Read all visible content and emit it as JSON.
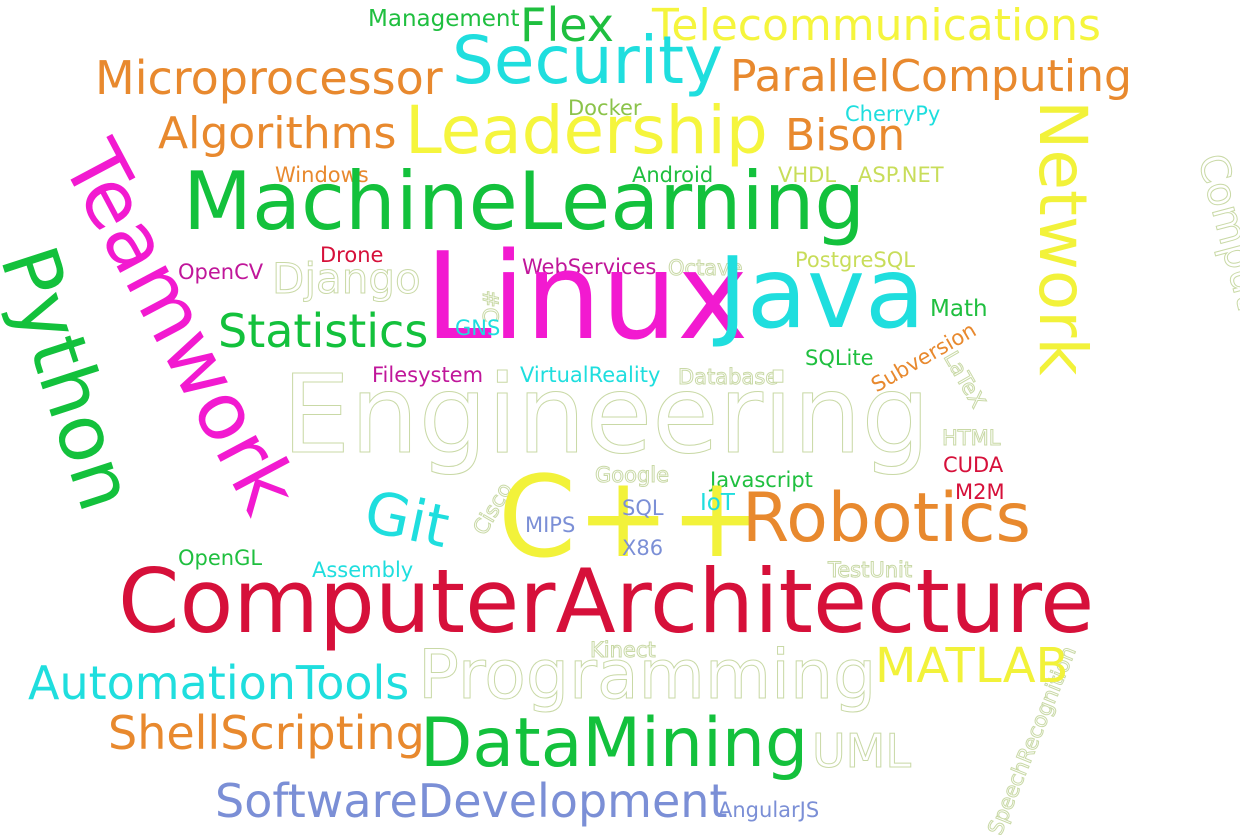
{
  "words": [
    {
      "text": "Management",
      "color": "#1fbf3f"
    },
    {
      "text": "Flex",
      "color": "#1fbf3f"
    },
    {
      "text": "Telecommunications",
      "color": "#f5f53d"
    },
    {
      "text": "Microprocessor",
      "color": "#e8892e"
    },
    {
      "text": "Security",
      "color": "#1fdede"
    },
    {
      "text": "ParallelComputing",
      "color": "#e8892e"
    },
    {
      "text": "Docker",
      "color": "#8bc34a"
    },
    {
      "text": "CherryPy",
      "color": "#1fdede"
    },
    {
      "text": "Algorithms",
      "color": "#e8892e"
    },
    {
      "text": "Leadership",
      "color": "#f5f53d"
    },
    {
      "text": "Bison",
      "color": "#e8892e"
    },
    {
      "text": "Windows",
      "color": "#e8892e"
    },
    {
      "text": "Android",
      "color": "#1fbf3f"
    },
    {
      "text": "VHDL",
      "color": "#c8dd5a"
    },
    {
      "text": "ASP.NET",
      "color": "#c8dd5a"
    },
    {
      "text": "MachineLearning",
      "color": "#13c13c"
    },
    {
      "text": "Network",
      "color": "#f2f23a"
    },
    {
      "text": "ComputerVision",
      "color": "#ffffff"
    },
    {
      "text": "Teamwork",
      "color": "#f21ad0"
    },
    {
      "text": "Python",
      "color": "#13c13c"
    },
    {
      "text": "OpenCV",
      "color": "#c0169a"
    },
    {
      "text": "Drone",
      "color": "#d6103a"
    },
    {
      "text": "Django",
      "color": "#ffffff"
    },
    {
      "text": "WebServices",
      "color": "#c0169a"
    },
    {
      "text": "Octave",
      "color": "#ffffff"
    },
    {
      "text": "PostgreSQL",
      "color": "#c8dd5a"
    },
    {
      "text": "Linux",
      "color": "#f21ad0"
    },
    {
      "text": "Java",
      "color": "#1fdede"
    },
    {
      "text": "#C",
      "color": "#ffffff"
    },
    {
      "text": "Math",
      "color": "#1fbf3f"
    },
    {
      "text": "Statistics",
      "color": "#13c13c"
    },
    {
      "text": "GNS",
      "color": "#1fdede"
    },
    {
      "text": "SQLite",
      "color": "#1fbf3f"
    },
    {
      "text": "Subversion",
      "color": "#e8892e"
    },
    {
      "text": "Filesystem",
      "color": "#c0169a"
    },
    {
      "text": "VirtualReality",
      "color": "#1fdede"
    },
    {
      "text": "Database",
      "color": "#ffffff"
    },
    {
      "text": "LaTeX",
      "color": "#ffffff"
    },
    {
      "text": "Engineering",
      "color": "#ffffff"
    },
    {
      "text": "HTML",
      "color": "#ffffff"
    },
    {
      "text": "CUDA",
      "color": "#d6103a"
    },
    {
      "text": "Google",
      "color": "#ffffff"
    },
    {
      "text": "Javascript",
      "color": "#1fbf3f"
    },
    {
      "text": "M2M",
      "color": "#d6103a"
    },
    {
      "text": "Cisco",
      "color": "#ffffff"
    },
    {
      "text": "Git",
      "color": "#1fdede"
    },
    {
      "text": "C++",
      "color": "#f2f23a"
    },
    {
      "text": "MIPS",
      "color": "#7b8fd6"
    },
    {
      "text": "SQL",
      "color": "#7b8fd6"
    },
    {
      "text": "IoT",
      "color": "#1fdede"
    },
    {
      "text": "Robotics",
      "color": "#e8892e"
    },
    {
      "text": "X86",
      "color": "#7b8fd6"
    },
    {
      "text": "OpenGL",
      "color": "#1fbf3f"
    },
    {
      "text": "Assembly",
      "color": "#1fdede"
    },
    {
      "text": "TestUnit",
      "color": "#ffffff"
    },
    {
      "text": "ComputerArchitecture",
      "color": "#d6103a"
    },
    {
      "text": "Kinect",
      "color": "#ffffff"
    },
    {
      "text": "SpeechRecognition",
      "color": "#ffffff"
    },
    {
      "text": "Programming",
      "color": "#ffffff"
    },
    {
      "text": "MATLAB",
      "color": "#f2f23a"
    },
    {
      "text": "AutomationTools",
      "color": "#1fdede"
    },
    {
      "text": "ShellScripting",
      "color": "#e8892e"
    },
    {
      "text": "DataMining",
      "color": "#13c13c"
    },
    {
      "text": "UML",
      "color": "#ffffff"
    },
    {
      "text": "SoftwareDevelopment",
      "color": "#7b8fd6"
    },
    {
      "text": "AngularJS",
      "color": "#7b8fd6"
    }
  ]
}
